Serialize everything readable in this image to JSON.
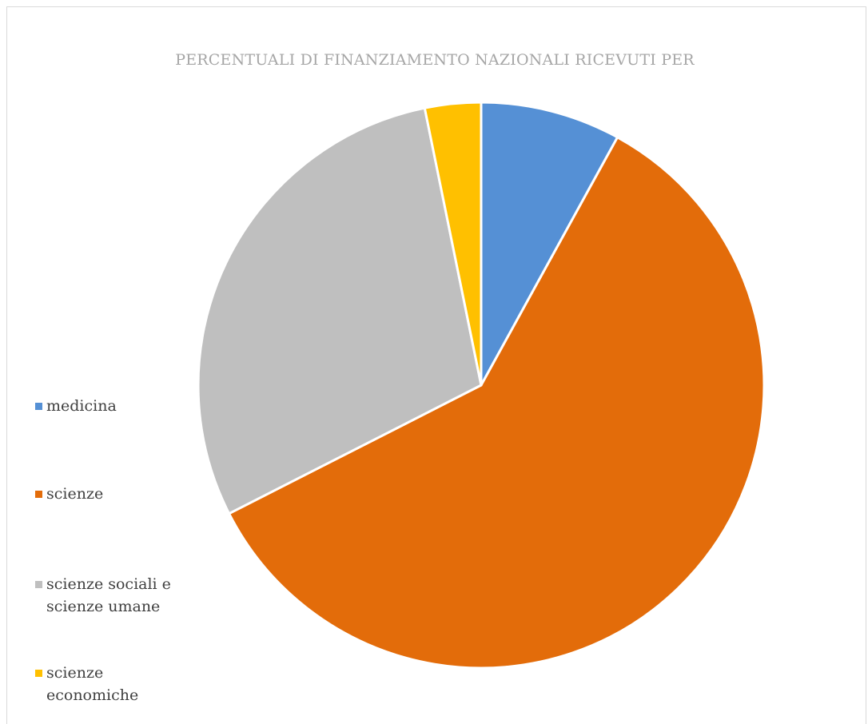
{
  "chart_data": {
    "type": "pie",
    "title": "PERCENTUALI DI FINANZIAMENTO NAZIONALI RICEVUTI PER",
    "categories": [
      "medicina",
      "scienze",
      "scienze sociali e scienze umane",
      "scienze economiche"
    ],
    "values": [
      8,
      59.5,
      29.3,
      3.2
    ],
    "colors": [
      "#5590d5",
      "#e36c0a",
      "#bfbfbf",
      "#ffc000"
    ],
    "legend_position": "left",
    "start_angle_deg": 0,
    "direction": "clockwise"
  }
}
